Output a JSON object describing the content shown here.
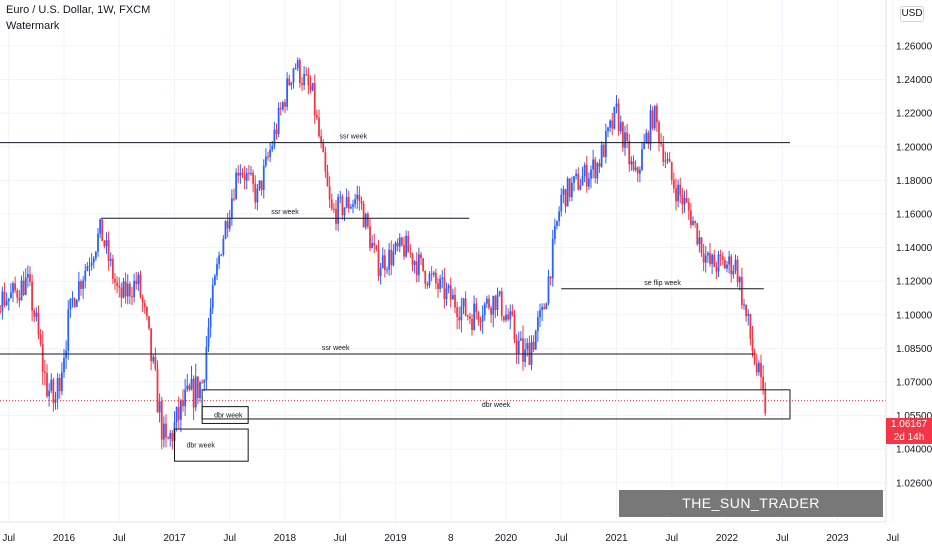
{
  "header": {
    "title": "Euro / U.S. Dollar, 1W, FXCM",
    "subtitle": "Watermark",
    "currency": "USD"
  },
  "price_badge": {
    "price": "1.06167",
    "countdown": "2d 14h"
  },
  "watermark_banner": "THE_SUN_TRADER",
  "colors": {
    "up": "#2962ff",
    "down": "#f23645",
    "grid": "#f0f3fa",
    "text": "#131722"
  },
  "chart_data": {
    "type": "candlestick",
    "y_ticks": [
      "1.02600",
      "1.04000",
      "1.05500",
      "1.07000",
      "1.08500",
      "1.10000",
      "1.12000",
      "1.14000",
      "1.16000",
      "1.18000",
      "1.20000",
      "1.22000",
      "1.24000",
      "1.26000"
    ],
    "x_ticks": [
      "Jul",
      "2016",
      "Jul",
      "2017",
      "Jul",
      "2018",
      "Jul",
      "2019",
      "8",
      "2020",
      "Jul",
      "2021",
      "Jul",
      "2022",
      "Jul",
      "2023",
      "Jul"
    ],
    "last_price": 1.06167,
    "series": [
      {
        "date": "2015-07",
        "value": 1.11
      },
      {
        "date": "2015-09",
        "value": 1.12
      },
      {
        "date": "2015-11",
        "value": 1.07
      },
      {
        "date": "2015-12",
        "value": 1.06
      },
      {
        "date": "2016-02",
        "value": 1.11
      },
      {
        "date": "2016-05",
        "value": 1.15
      },
      {
        "date": "2016-07",
        "value": 1.11
      },
      {
        "date": "2016-09",
        "value": 1.12
      },
      {
        "date": "2016-12",
        "value": 1.04
      },
      {
        "date": "2017-02",
        "value": 1.06
      },
      {
        "date": "2017-04",
        "value": 1.07
      },
      {
        "date": "2017-06",
        "value": 1.14
      },
      {
        "date": "2017-08",
        "value": 1.19
      },
      {
        "date": "2017-10",
        "value": 1.17
      },
      {
        "date": "2018-02",
        "value": 1.25
      },
      {
        "date": "2018-04",
        "value": 1.23
      },
      {
        "date": "2018-06",
        "value": 1.16
      },
      {
        "date": "2018-09",
        "value": 1.17
      },
      {
        "date": "2018-11",
        "value": 1.13
      },
      {
        "date": "2019-02",
        "value": 1.14
      },
      {
        "date": "2019-05",
        "value": 1.12
      },
      {
        "date": "2019-09",
        "value": 1.1
      },
      {
        "date": "2019-12",
        "value": 1.11
      },
      {
        "date": "2020-03",
        "value": 1.08
      },
      {
        "date": "2020-05",
        "value": 1.1
      },
      {
        "date": "2020-07",
        "value": 1.17
      },
      {
        "date": "2020-09",
        "value": 1.18
      },
      {
        "date": "2020-11",
        "value": 1.19
      },
      {
        "date": "2021-01",
        "value": 1.22
      },
      {
        "date": "2021-03",
        "value": 1.18
      },
      {
        "date": "2021-05",
        "value": 1.22
      },
      {
        "date": "2021-07",
        "value": 1.18
      },
      {
        "date": "2021-09",
        "value": 1.16
      },
      {
        "date": "2021-11",
        "value": 1.13
      },
      {
        "date": "2022-01",
        "value": 1.13
      },
      {
        "date": "2022-02",
        "value": 1.13
      },
      {
        "date": "2022-03",
        "value": 1.1
      },
      {
        "date": "2022-04",
        "value": 1.08
      },
      {
        "date": "2022-05",
        "value": 1.06
      }
    ],
    "annotations": [
      {
        "type": "hline",
        "label": "ssr week",
        "price": 1.2025,
        "from": "2014-09",
        "to": "2022-09"
      },
      {
        "type": "hline",
        "label": "ssr week",
        "price": 1.1575,
        "from": "2016-05",
        "to": "2019-09"
      },
      {
        "type": "hline",
        "label": "se flip week",
        "price": 1.1155,
        "from": "2020-07",
        "to": "2022-05"
      },
      {
        "type": "hline",
        "label": "ssr week",
        "price": 1.0825,
        "from": "2014-09",
        "to": "2022-04"
      },
      {
        "type": "box",
        "label": "dbr week",
        "price_high": 1.0665,
        "price_low": 1.0535,
        "from": "2017-04",
        "to": "2022-10"
      },
      {
        "type": "box",
        "label": "dbr week",
        "price_high": 1.059,
        "price_low": 1.0515,
        "from": "2017-04",
        "to": "2017-09"
      },
      {
        "type": "box",
        "label": "dbr week",
        "price_high": 1.049,
        "price_low": 1.035,
        "from": "2017-01",
        "to": "2017-09"
      }
    ]
  }
}
